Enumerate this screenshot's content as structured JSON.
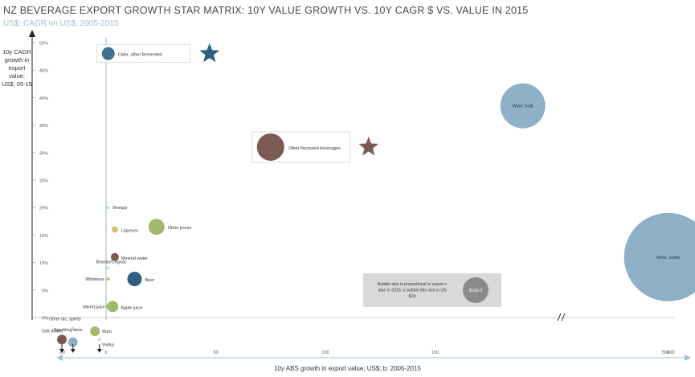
{
  "chart_data": {
    "type": "scatter",
    "title": "NZ BEVERAGE EXPORT GROWTH STAR MATRIX: 10Y VALUE GROWTH VS. 10Y CAGR $ VS. VALUE IN 2015",
    "subtitle": "US$; CAGR on US$; 2005-2015",
    "ylabel": "10y CAGR growth in export value; US$; 05-15",
    "xlabel": "10y ABS growth in export value; US$; b; 2005-2015",
    "x_ticks": [
      "-20",
      "0",
      "50",
      "100",
      "150",
      "580",
      "600"
    ],
    "y_ticks": [
      "0%",
      "5%",
      "10%",
      "15%",
      "20%",
      "25%",
      "30%",
      "35%",
      "40%",
      "45%",
      "50%"
    ],
    "x_axis_break": true,
    "points": [
      {
        "label": "Cider, other fermented",
        "x": 1,
        "y": 48,
        "color": "#3d6f8e",
        "star": true,
        "boxed": true
      },
      {
        "label": "Wine, bulk",
        "x": 190,
        "y": 38.5,
        "color": "#8fb1c8"
      },
      {
        "label": "Other flavoured beverages",
        "x": 75,
        "y": 31,
        "color": "#7a5a52",
        "star": true,
        "boxed": true
      },
      {
        "label": "Vinegar",
        "x": 1,
        "y": 20,
        "color": "#cfd8df"
      },
      {
        "label": "Liqueurs",
        "x": 4,
        "y": 16,
        "color": "#d4c06a"
      },
      {
        "label": "Other juices",
        "x": 23,
        "y": 16.5,
        "color": "#a4b86a"
      },
      {
        "label": "Mineral water",
        "x": 4,
        "y": 11,
        "color": "#7a5a52"
      },
      {
        "label": "Brandy/Cognac",
        "x": 1,
        "y": 9,
        "color": "#cfd8df"
      },
      {
        "label": "Whiskeys",
        "x": 1,
        "y": 7,
        "color": "#d4c06a"
      },
      {
        "label": "Beer",
        "x": 13,
        "y": 7,
        "color": "#2f5f80"
      },
      {
        "label": "Mixed juice",
        "x": 1,
        "y": 2,
        "color": "#a4b86a"
      },
      {
        "label": "Apple juice",
        "x": 3,
        "y": 2,
        "color": "#a4b86a"
      },
      {
        "label": "Wine, bottle",
        "x": 590,
        "y": 11,
        "color": "#8fb1c8"
      },
      {
        "label": "Rum",
        "x": -5,
        "y": -2.5,
        "color": "#a4b86a"
      },
      {
        "label": "Other alc. spirits",
        "x": -15,
        "y": -2,
        "color": "#cfd8df"
      },
      {
        "label": "Soft drinks",
        "x": -20,
        "y": -4,
        "color": "#7a5a52"
      },
      {
        "label": "Sparkling wine",
        "x": -15,
        "y": -4.5,
        "color": "#8fb1c8"
      },
      {
        "label": "Vodka",
        "x": -3,
        "y": -4,
        "color": "#cfd8df"
      }
    ],
    "legend_note": {
      "text": "Bubble size is proportional to export value in 2015; a bubble this size is US$1b",
      "value_label": "$100.0"
    }
  }
}
